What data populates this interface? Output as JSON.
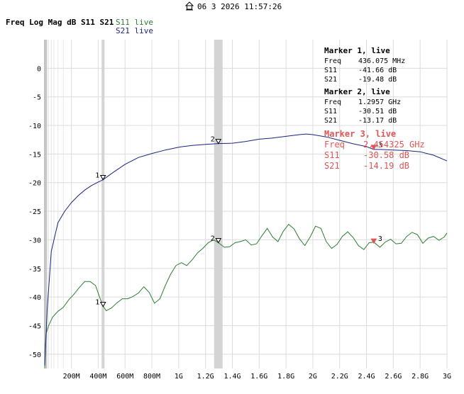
{
  "header": {
    "timestamp": "06 3 2026 11:57:26",
    "title": "Freq Log Mag dB S11 S21",
    "legend": [
      {
        "label": "S11 live",
        "color": "#2e7d32"
      },
      {
        "label": "S21 live",
        "color": "#1a237e"
      }
    ]
  },
  "markers_readout": [
    {
      "title": "Marker 1, live",
      "color": "#000000",
      "rows": [
        [
          "Freq",
          "436.075 MHz"
        ],
        [
          "S11",
          "-41.66 dB"
        ],
        [
          "S21",
          "-19.48 dB"
        ]
      ]
    },
    {
      "title": "Marker 2, live",
      "color": "#000000",
      "rows": [
        [
          "Freq",
          "1.2957 GHz"
        ],
        [
          "S11",
          "-30.51 dB"
        ],
        [
          "S21",
          "-13.17 dB"
        ]
      ]
    },
    {
      "title": "Marker 3, live",
      "color": "#e05555",
      "rows": [
        [
          "Freq",
          "2.454325 GHz"
        ],
        [
          "S11",
          "-30.58 dB"
        ],
        [
          "S21",
          "-14.19 dB"
        ]
      ]
    }
  ],
  "chart_data": {
    "type": "line",
    "title": "Freq Log Mag dB S11 S21",
    "xlabel": "",
    "ylabel": "",
    "xlim": [
      0.001,
      3.0
    ],
    "ylim": [
      -52.5,
      5
    ],
    "grid": true,
    "x_tick_values": [
      0.2,
      0.4,
      0.6,
      0.8,
      1.0,
      1.2,
      1.4,
      1.6,
      1.8,
      2.0,
      2.2,
      2.4,
      2.6,
      2.8,
      3.0
    ],
    "x_tick_labels": [
      "200M",
      "400M",
      "600M",
      "800M",
      "1G",
      "1.2G",
      "1.4G",
      "1.6G",
      "1.8G",
      "2G",
      "2.2G",
      "2.4G",
      "2.6G",
      "2.8G",
      "3G"
    ],
    "y_tick_values": [
      0,
      -5,
      -10,
      -15,
      -20,
      -25,
      -30,
      -35,
      -40,
      -45,
      -50
    ],
    "y_tick_labels": [
      "0",
      "-5",
      "-10",
      "-15",
      "-20",
      "-25",
      "-30",
      "-35",
      "-40",
      "-45",
      "-50"
    ],
    "series": [
      {
        "name": "S11 live",
        "color": "#2e7d32",
        "x": [
          0.001,
          0.01,
          0.03,
          0.06,
          0.1,
          0.14,
          0.18,
          0.22,
          0.26,
          0.3,
          0.34,
          0.38,
          0.41,
          0.436,
          0.46,
          0.5,
          0.54,
          0.58,
          0.62,
          0.66,
          0.7,
          0.74,
          0.78,
          0.82,
          0.86,
          0.9,
          0.94,
          0.98,
          1.02,
          1.06,
          1.1,
          1.14,
          1.18,
          1.22,
          1.26,
          1.2957,
          1.34,
          1.38,
          1.42,
          1.46,
          1.5,
          1.54,
          1.58,
          1.62,
          1.66,
          1.7,
          1.74,
          1.78,
          1.82,
          1.86,
          1.9,
          1.94,
          1.98,
          2.02,
          2.06,
          2.1,
          2.14,
          2.18,
          2.22,
          2.26,
          2.3,
          2.34,
          2.38,
          2.42,
          2.454,
          2.5,
          2.54,
          2.58,
          2.62,
          2.66,
          2.7,
          2.74,
          2.78,
          2.82,
          2.86,
          2.9,
          2.94,
          2.98,
          3.0
        ],
        "y": [
          -52.5,
          -46.5,
          -45.0,
          -43.5,
          -42.5,
          -41.8,
          -40.5,
          -39.5,
          -38.3,
          -37.3,
          -37.3,
          -38.0,
          -40.0,
          -41.6,
          -42.4,
          -41.9,
          -41.0,
          -40.3,
          -40.3,
          -39.9,
          -39.3,
          -38.2,
          -39.2,
          -41.1,
          -40.3,
          -38.0,
          -36.0,
          -34.5,
          -34.0,
          -34.5,
          -33.5,
          -32.3,
          -31.5,
          -30.5,
          -30.0,
          -30.5,
          -31.3,
          -31.2,
          -30.5,
          -30.3,
          -30.0,
          -30.9,
          -30.7,
          -29.3,
          -28.0,
          -29.5,
          -30.3,
          -28.5,
          -27.3,
          -28.1,
          -29.8,
          -31.0,
          -29.5,
          -27.6,
          -28.0,
          -30.3,
          -31.5,
          -30.8,
          -29.4,
          -28.6,
          -29.6,
          -31.0,
          -31.7,
          -30.5,
          -30.4,
          -31.3,
          -30.4,
          -29.9,
          -30.7,
          -30.6,
          -29.4,
          -28.7,
          -29.1,
          -30.6,
          -29.7,
          -29.4,
          -30.1,
          -29.5,
          -28.8
        ]
      },
      {
        "name": "S21 live",
        "color": "#1a237e",
        "x": [
          0.001,
          0.02,
          0.05,
          0.1,
          0.15,
          0.2,
          0.25,
          0.3,
          0.35,
          0.4,
          0.436,
          0.5,
          0.6,
          0.7,
          0.8,
          0.9,
          1.0,
          1.1,
          1.2,
          1.2957,
          1.4,
          1.5,
          1.6,
          1.7,
          1.8,
          1.9,
          1.95,
          2.0,
          2.1,
          2.2,
          2.3,
          2.4,
          2.454,
          2.5,
          2.6,
          2.7,
          2.8,
          2.9,
          3.0
        ],
        "y": [
          -52.0,
          -42.0,
          -32.0,
          -27.0,
          -25.0,
          -23.5,
          -22.3,
          -21.3,
          -20.5,
          -19.9,
          -19.5,
          -18.4,
          -16.8,
          -15.6,
          -14.9,
          -14.3,
          -13.8,
          -13.5,
          -13.3,
          -13.17,
          -13.1,
          -12.8,
          -12.4,
          -12.2,
          -11.9,
          -11.6,
          -11.5,
          -11.6,
          -12.0,
          -12.6,
          -13.2,
          -13.7,
          -14.19,
          -14.2,
          -14.3,
          -14.4,
          -14.6,
          -15.2,
          -16.2
        ]
      }
    ],
    "markers": [
      {
        "label": "1",
        "x": 0.436,
        "s11": -41.66,
        "s21": -19.48,
        "color": "#000000"
      },
      {
        "label": "2",
        "x": 1.2957,
        "s11": -30.51,
        "s21": -13.17,
        "color": "#000000"
      },
      {
        "label": "3",
        "x": 2.454325,
        "s11": -30.58,
        "s21": -14.19,
        "color": "#e05555"
      }
    ]
  }
}
